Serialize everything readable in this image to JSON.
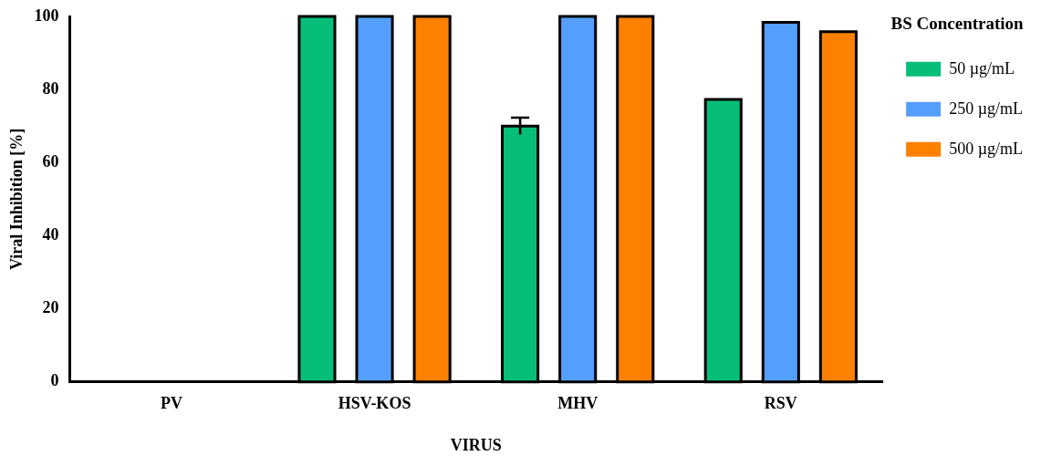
{
  "chart_data": {
    "type": "bar",
    "xlabel": "VIRUS",
    "ylabel": "Viral Inhibition [%]",
    "legend_title": "BS Concentration",
    "categories": [
      "PV",
      "HSV-KOS",
      "MHV",
      "RSV"
    ],
    "series": [
      {
        "name": "50 µg/mL",
        "color": "#06be78",
        "values": [
          0,
          100,
          70,
          77.3
        ],
        "errors": [
          null,
          null,
          2.3,
          null
        ]
      },
      {
        "name": "250 µg/mL",
        "color": "#559ffc",
        "values": [
          0,
          100,
          100,
          98.4
        ]
      },
      {
        "name": "500 µg/mL",
        "color": "#fe8000",
        "values": [
          0,
          100,
          100,
          95.8
        ]
      }
    ],
    "ylim": [
      0,
      100
    ],
    "yticks": [
      0,
      20,
      40,
      60,
      80,
      100
    ],
    "grid": false,
    "legend": "right"
  }
}
